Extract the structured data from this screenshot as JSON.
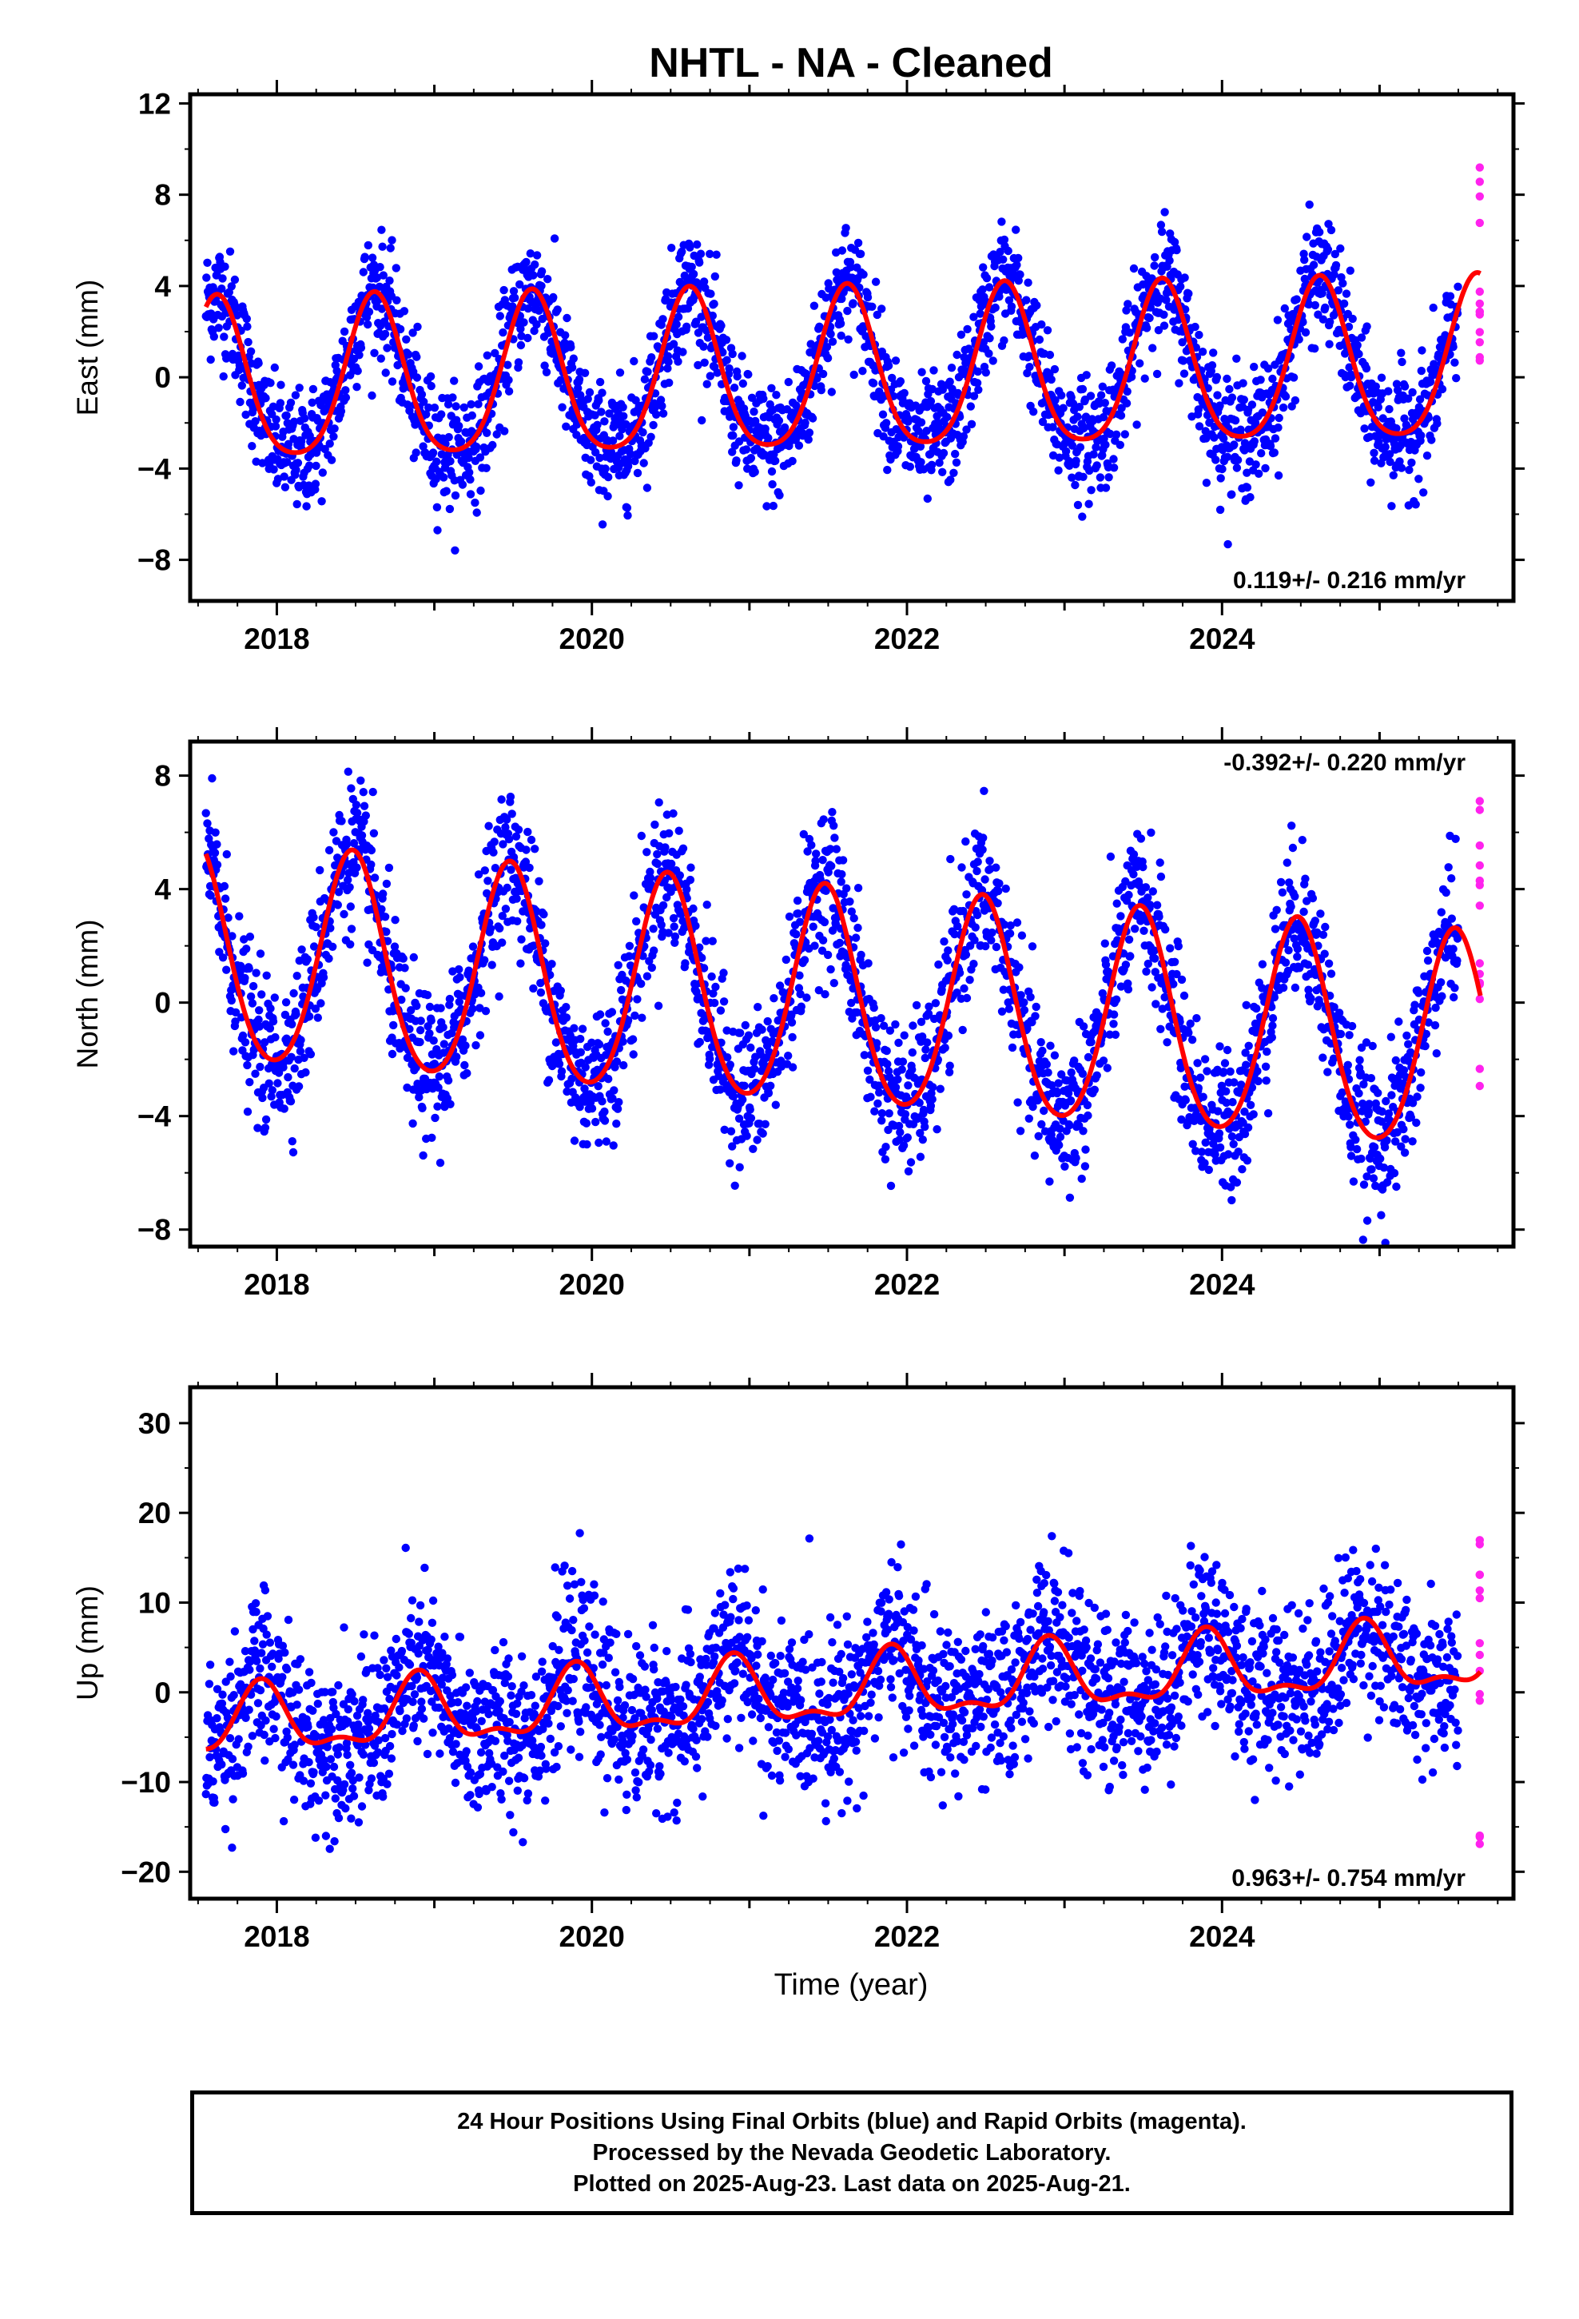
{
  "title": "NHTL  - NA - Cleaned",
  "xlabel": "Time (year)",
  "colors": {
    "final": "#0000ff",
    "rapid": "#ff22ee",
    "model": "#ff0000"
  },
  "chart_data": [
    {
      "type": "scatter",
      "component": "East",
      "ylabel": "East (mm)",
      "ylim": [
        -9.8,
        12.4
      ],
      "yticks": [
        12,
        8,
        4,
        0,
        -4,
        -8
      ],
      "ytick_labels": [
        "12",
        "8",
        "4",
        "0",
        "−4",
        "−8"
      ],
      "xlim": [
        2017.45,
        2025.85
      ],
      "xticks": [
        2018,
        2020,
        2022,
        2024
      ],
      "xtick_labels": [
        "2018",
        "2020",
        "2022",
        "2024"
      ],
      "rate": "0.119+/- 0.216 mm/yr",
      "rate_position": "bottom-right",
      "model": {
        "trend": 0.119,
        "annual_amp": 3.5,
        "phase": 0.62,
        "semi_amp": 0.6,
        "noise": 1.3
      },
      "series": [
        {
          "name": "Final Orbits",
          "x_range": [
            2017.55,
            2025.5
          ]
        },
        {
          "name": "Rapid Orbits",
          "x_range": [
            2025.55,
            2025.64
          ]
        }
      ]
    },
    {
      "type": "scatter",
      "component": "North",
      "ylabel": "North (mm)",
      "ylim": [
        -8.6,
        9.2
      ],
      "yticks": [
        8,
        4,
        0,
        -4,
        -8
      ],
      "ytick_labels": [
        "8",
        "4",
        "0",
        "−4",
        "−8"
      ],
      "xlim": [
        2017.45,
        2025.85
      ],
      "xticks": [
        2018,
        2020,
        2022,
        2024
      ],
      "xtick_labels": [
        "2018",
        "2020",
        "2022",
        "2024"
      ],
      "rate": "-0.392+/- 0.220 mm/yr",
      "rate_position": "top-right",
      "model": {
        "trend": -0.392,
        "annual_amp": 3.8,
        "phase": 0.48,
        "semi_amp": 0.4,
        "noise": 1.3
      },
      "series": [
        {
          "name": "Final Orbits",
          "x_range": [
            2017.55,
            2025.5
          ]
        },
        {
          "name": "Rapid Orbits",
          "x_range": [
            2025.55,
            2025.64
          ]
        }
      ]
    },
    {
      "type": "scatter",
      "component": "Up",
      "ylabel": "Up (mm)",
      "ylim": [
        -23,
        34
      ],
      "yticks": [
        30,
        20,
        10,
        0,
        -10,
        -20
      ],
      "ytick_labels": [
        "30",
        "20",
        "10",
        "0",
        "−10",
        "−20"
      ],
      "xlim": [
        2017.45,
        2025.85
      ],
      "xticks": [
        2018,
        2020,
        2022,
        2024
      ],
      "xtick_labels": [
        "2018",
        "2020",
        "2022",
        "2024"
      ],
      "rate": "0.963+/- 0.754 mm/yr",
      "rate_position": "bottom-right",
      "model": {
        "trend": 0.963,
        "annual_amp": 3.5,
        "phase": 0.9,
        "semi_amp": 1.5,
        "noise": 4.5
      },
      "series": [
        {
          "name": "Final Orbits",
          "x_range": [
            2017.55,
            2025.5
          ]
        },
        {
          "name": "Rapid Orbits",
          "x_range": [
            2025.55,
            2025.64
          ]
        }
      ]
    }
  ],
  "footer": {
    "line1": "24 Hour Positions Using Final Orbits (blue) and Rapid Orbits (magenta).",
    "line2": "Processed by the Nevada Geodetic Laboratory.",
    "line3": "Plotted on 2025-Aug-23. Last data on 2025-Aug-21."
  }
}
